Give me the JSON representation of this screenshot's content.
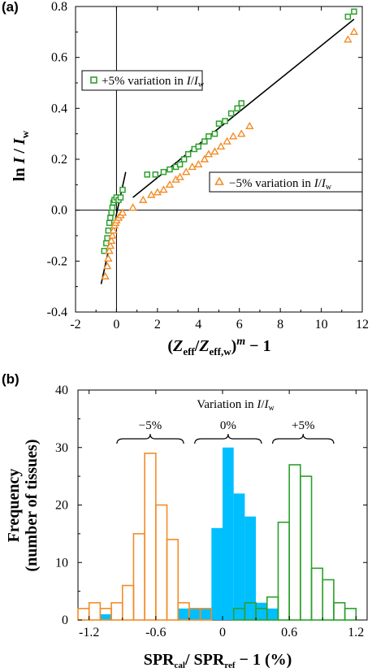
{
  "chart_data": [
    {
      "type": "scatter",
      "panel_label": "(a)",
      "xlabel": "(Z_eff/Z_eff,w)^m − 1",
      "ylabel": "ln I / I_w",
      "xlim": [
        -2,
        12
      ],
      "ylim": [
        -0.4,
        0.8
      ],
      "xticks": [
        "-2",
        "0",
        "2",
        "4",
        "6",
        "8",
        "10",
        "12"
      ],
      "yticks": [
        "-0.4",
        "-0.2",
        "0.0",
        "0.2",
        "0.4",
        "0.6",
        "0.8"
      ],
      "colors": {
        "plus": "#2ca02c",
        "minus": "#f28c28",
        "fit": "#000000"
      },
      "series": [
        {
          "name": "+5% variation in I/I_w",
          "marker": "square",
          "points": [
            [
              -0.6,
              -0.16
            ],
            [
              -0.5,
              -0.13
            ],
            [
              -0.45,
              -0.11
            ],
            [
              -0.4,
              -0.08
            ],
            [
              -0.35,
              -0.05
            ],
            [
              -0.3,
              -0.03
            ],
            [
              -0.25,
              -0.01
            ],
            [
              -0.2,
              0.01
            ],
            [
              -0.15,
              0.03
            ],
            [
              -0.1,
              0.04
            ],
            [
              0.0,
              0.05
            ],
            [
              0.1,
              0.04
            ],
            [
              0.2,
              0.05
            ],
            [
              0.3,
              0.08
            ],
            [
              1.5,
              0.14
            ],
            [
              1.9,
              0.14
            ],
            [
              2.3,
              0.15
            ],
            [
              2.6,
              0.16
            ],
            [
              2.9,
              0.17
            ],
            [
              3.1,
              0.18
            ],
            [
              3.3,
              0.2
            ],
            [
              3.5,
              0.22
            ],
            [
              3.8,
              0.24
            ],
            [
              4.0,
              0.25
            ],
            [
              4.3,
              0.27
            ],
            [
              4.5,
              0.29
            ],
            [
              4.8,
              0.3
            ],
            [
              5.0,
              0.34
            ],
            [
              5.3,
              0.35
            ],
            [
              5.6,
              0.38
            ],
            [
              5.9,
              0.4
            ],
            [
              6.1,
              0.42
            ],
            [
              11.3,
              0.76
            ],
            [
              11.6,
              0.78
            ]
          ]
        },
        {
          "name": "−5% variation in I/I_w",
          "marker": "triangle",
          "points": [
            [
              -0.55,
              -0.26
            ],
            [
              -0.45,
              -0.22
            ],
            [
              -0.4,
              -0.19
            ],
            [
              -0.35,
              -0.16
            ],
            [
              -0.3,
              -0.14
            ],
            [
              -0.25,
              -0.12
            ],
            [
              -0.2,
              -0.1
            ],
            [
              -0.15,
              -0.08
            ],
            [
              -0.1,
              -0.06
            ],
            [
              -0.05,
              -0.05
            ],
            [
              0.0,
              -0.04
            ],
            [
              0.1,
              -0.03
            ],
            [
              0.2,
              -0.02
            ],
            [
              0.3,
              -0.01
            ],
            [
              0.8,
              0.01
            ],
            [
              1.3,
              0.04
            ],
            [
              1.7,
              0.06
            ],
            [
              2.0,
              0.07
            ],
            [
              2.3,
              0.08
            ],
            [
              2.6,
              0.1
            ],
            [
              2.9,
              0.12
            ],
            [
              3.1,
              0.13
            ],
            [
              3.4,
              0.15
            ],
            [
              3.7,
              0.17
            ],
            [
              4.0,
              0.18
            ],
            [
              4.3,
              0.2
            ],
            [
              4.5,
              0.22
            ],
            [
              4.8,
              0.23
            ],
            [
              5.1,
              0.25
            ],
            [
              5.4,
              0.27
            ],
            [
              5.7,
              0.29
            ],
            [
              6.1,
              0.3
            ],
            [
              6.5,
              0.33
            ],
            [
              11.3,
              0.67
            ],
            [
              11.6,
              0.7
            ]
          ]
        }
      ],
      "fit_lines": [
        {
          "x": [
            -0.75,
            0.45
          ],
          "y": [
            -0.29,
            0.15
          ]
        },
        {
          "x": [
            0.8,
            11.6
          ],
          "y": [
            0.05,
            0.75
          ]
        }
      ],
      "legend": [
        {
          "label": "+5% variation in I/I_w",
          "marker": "square"
        },
        {
          "label": "−5% variation in I/I_w",
          "marker": "triangle"
        }
      ]
    },
    {
      "type": "bar",
      "panel_label": "(b)",
      "xlabel": "SPR_cal / SPR_ref − 1 (%)",
      "ylabel_line1": "Frequency",
      "ylabel_line2": "(number of tissues)",
      "xlim": [
        -1.3,
        1.3
      ],
      "ylim": [
        0,
        40
      ],
      "xticks": [
        "-1.2",
        "-0.6",
        "0",
        "0.6",
        "1.2"
      ],
      "yticks": [
        "0",
        "10",
        "20",
        "30",
        "40"
      ],
      "bin_width": 0.1,
      "colors": {
        "minus": "#f28c28",
        "zero": "#00bfff",
        "plus": "#2ca02c"
      },
      "annotation_title": "Variation in I/I_w",
      "group_labels": [
        "−5%",
        "0%",
        "+5%"
      ],
      "series": [
        {
          "name": "−5%",
          "style": "outline",
          "bin_starts": [
            -1.3,
            -1.2,
            -1.1,
            -1.0,
            -0.9,
            -0.8,
            -0.7,
            -0.6,
            -0.5,
            -0.4,
            -0.3,
            -0.2
          ],
          "values": [
            2,
            3,
            2,
            3,
            6,
            15,
            29,
            20,
            14,
            3,
            2,
            2
          ]
        },
        {
          "name": "0%",
          "style": "filled",
          "bin_starts": [
            -1.1,
            -0.4,
            -0.3,
            -0.2,
            -0.1,
            0.0,
            0.1,
            0.2,
            0.3,
            0.4
          ],
          "values": [
            1,
            2,
            2,
            2,
            16,
            30,
            22,
            18,
            3,
            2
          ]
        },
        {
          "name": "+5%",
          "style": "outline",
          "bin_starts": [
            0.1,
            0.2,
            0.3,
            0.4,
            0.5,
            0.6,
            0.7,
            0.8,
            0.9,
            1.0,
            1.1
          ],
          "values": [
            2,
            3,
            2,
            4,
            17,
            27,
            25,
            9,
            7,
            3,
            2
          ]
        }
      ]
    }
  ]
}
